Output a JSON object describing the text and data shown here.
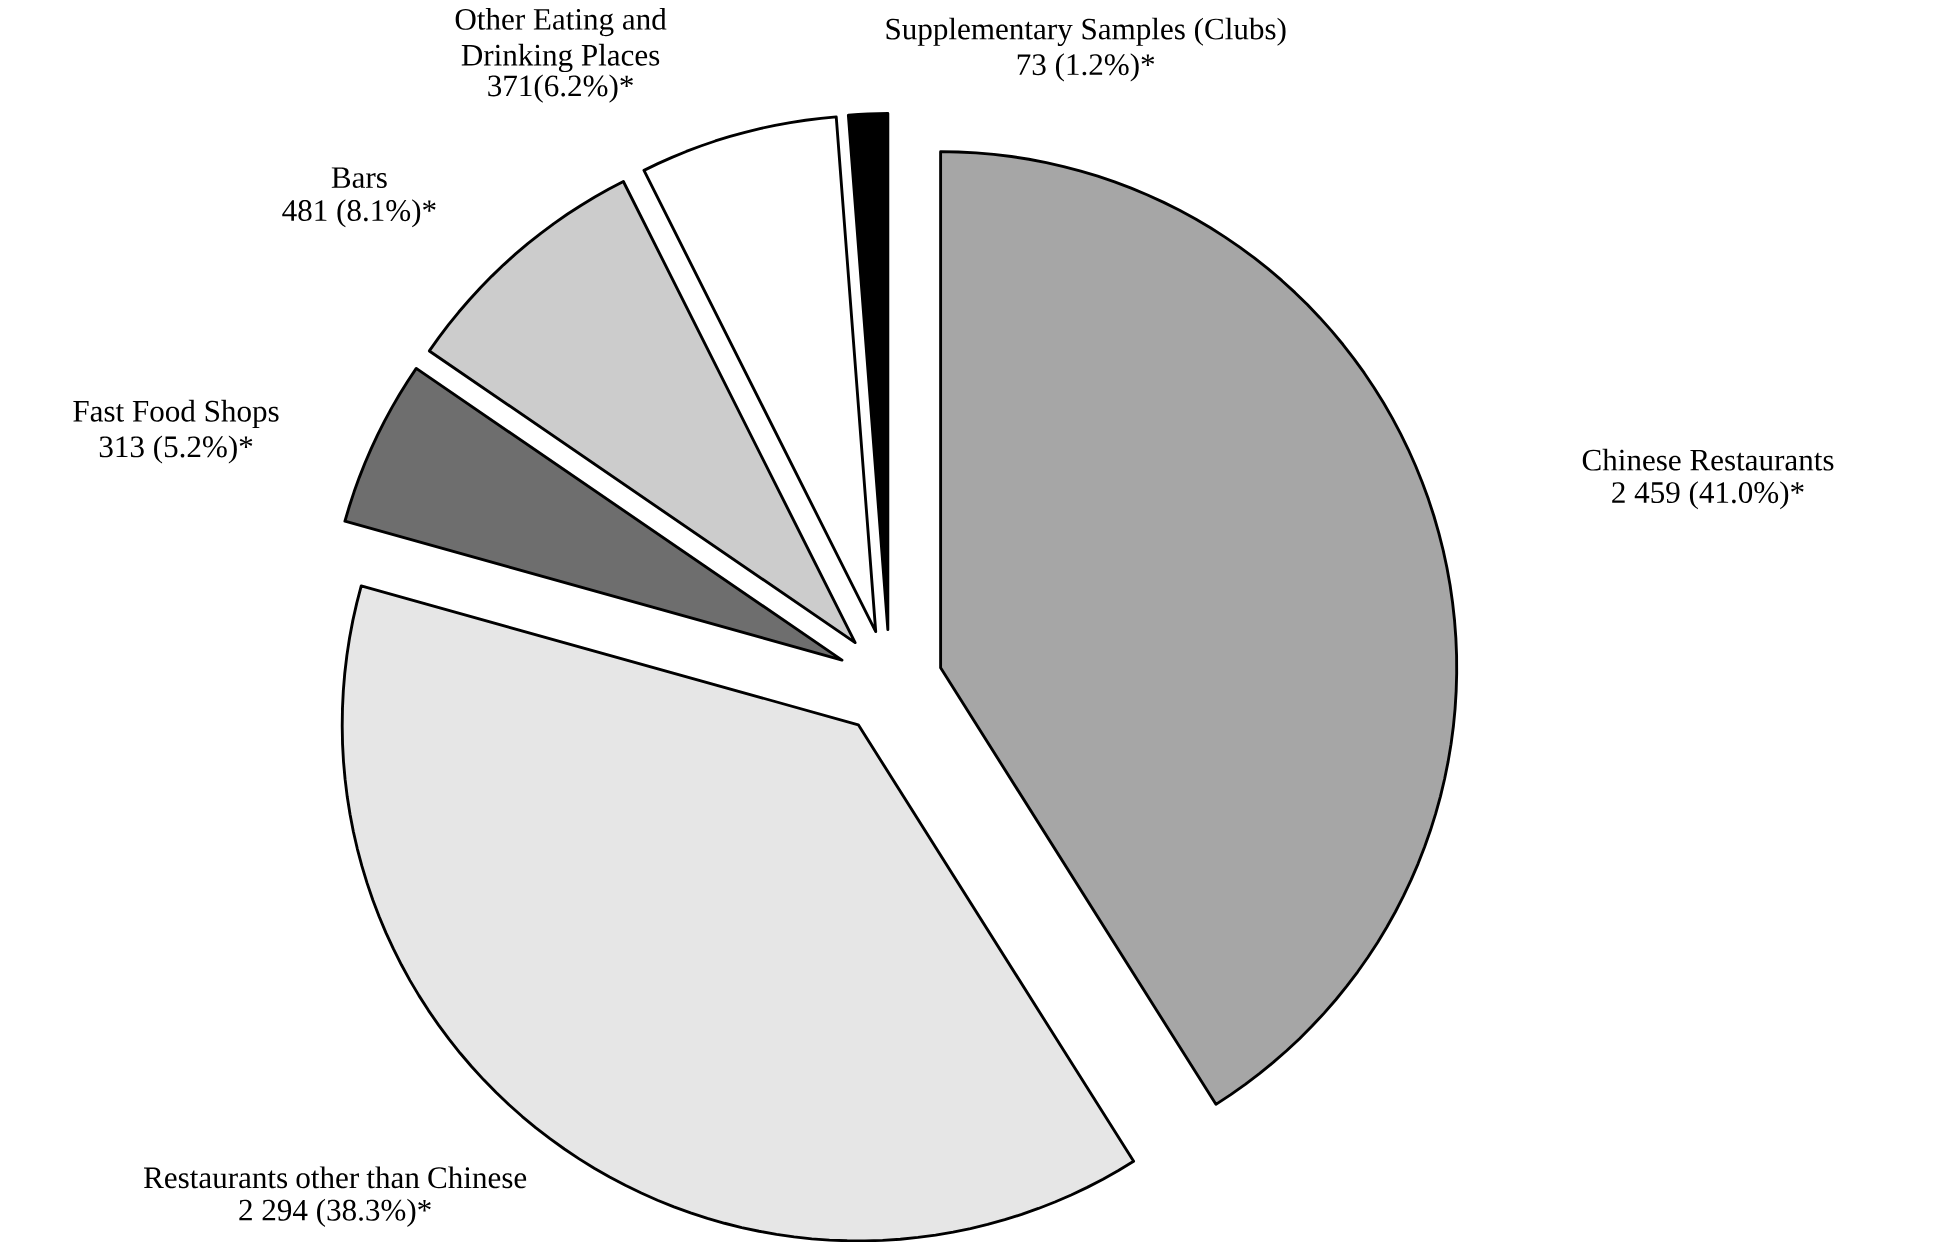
{
  "chart_data": {
    "type": "pie",
    "categories": [
      "Chinese Restaurants",
      "Restaurants other than Chinese",
      "Fast Food Shops",
      "Bars",
      "Other Eating and Drinking Places",
      "Supplementary Samples (Clubs)"
    ],
    "values": [
      2459,
      2294,
      313,
      481,
      371,
      73
    ],
    "value_labels": [
      "2 459 (41.0%)*",
      "2 294 (38.3%)*",
      "313 (5.2%)*",
      "481 (8.1%)*",
      "371(6.2%)*",
      "73 (1.2%)*"
    ],
    "colors": [
      "#a6a6a6",
      "#e6e6e6",
      "#6e6e6e",
      "#cccccc",
      "#ffffff",
      "#000000"
    ]
  }
}
